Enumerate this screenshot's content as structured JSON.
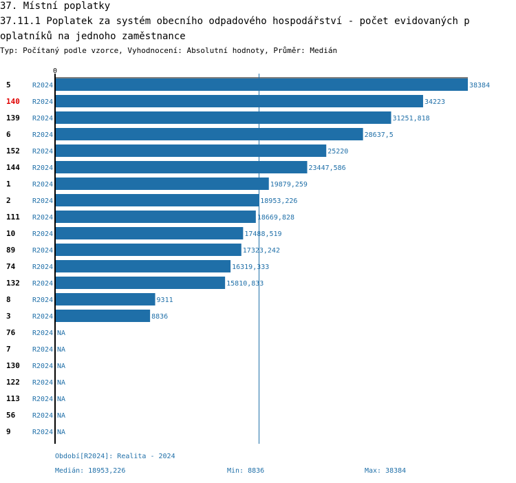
{
  "header": {
    "section_title": "37. Místní poplatky",
    "chart_title_line1": "37.11.1 Poplatek za systém obecního odpadového hospodářství - počet evidovaných p",
    "chart_title_line2": "oplatníků na jednoho zaměstnance",
    "subtitle": "Typ: Počítaný podle vzorce, Vyhodnocení: Absolutní hodnoty, Průměr: Medián"
  },
  "colors": {
    "bar": "#1f6fa8",
    "text_blue": "#1f6fa8",
    "highlight": "#e00000",
    "axis": "#000000",
    "median_line": "#1f6fa8"
  },
  "chart_data": {
    "type": "bar",
    "orientation": "horizontal",
    "x_axis_zero_label": "0",
    "xlim": [
      0,
      38384
    ],
    "median": 18953.226,
    "categories": [
      {
        "id": "5",
        "period": "R2024",
        "value": 38384,
        "label": "38384",
        "highlight": false
      },
      {
        "id": "140",
        "period": "R2024",
        "value": 34223,
        "label": "34223",
        "highlight": true
      },
      {
        "id": "139",
        "period": "R2024",
        "value": 31251.818,
        "label": "31251,818",
        "highlight": false
      },
      {
        "id": "6",
        "period": "R2024",
        "value": 28637.5,
        "label": "28637,5",
        "highlight": false
      },
      {
        "id": "152",
        "period": "R2024",
        "value": 25220,
        "label": "25220",
        "highlight": false
      },
      {
        "id": "144",
        "period": "R2024",
        "value": 23447.586,
        "label": "23447,586",
        "highlight": false
      },
      {
        "id": "1",
        "period": "R2024",
        "value": 19879.259,
        "label": "19879,259",
        "highlight": false
      },
      {
        "id": "2",
        "period": "R2024",
        "value": 18953.226,
        "label": "18953,226",
        "highlight": false
      },
      {
        "id": "111",
        "period": "R2024",
        "value": 18669.828,
        "label": "18669,828",
        "highlight": false
      },
      {
        "id": "10",
        "period": "R2024",
        "value": 17488.519,
        "label": "17488,519",
        "highlight": false
      },
      {
        "id": "89",
        "period": "R2024",
        "value": 17323.242,
        "label": "17323,242",
        "highlight": false
      },
      {
        "id": "74",
        "period": "R2024",
        "value": 16319.333,
        "label": "16319,333",
        "highlight": false
      },
      {
        "id": "132",
        "period": "R2024",
        "value": 15810.833,
        "label": "15810,833",
        "highlight": false
      },
      {
        "id": "8",
        "period": "R2024",
        "value": 9311,
        "label": "9311",
        "highlight": false
      },
      {
        "id": "3",
        "period": "R2024",
        "value": 8836,
        "label": "8836",
        "highlight": false
      },
      {
        "id": "76",
        "period": "R2024",
        "value": null,
        "label": "NA",
        "highlight": false
      },
      {
        "id": "7",
        "period": "R2024",
        "value": null,
        "label": "NA",
        "highlight": false
      },
      {
        "id": "130",
        "period": "R2024",
        "value": null,
        "label": "NA",
        "highlight": false
      },
      {
        "id": "122",
        "period": "R2024",
        "value": null,
        "label": "NA",
        "highlight": false
      },
      {
        "id": "113",
        "period": "R2024",
        "value": null,
        "label": "NA",
        "highlight": false
      },
      {
        "id": "56",
        "period": "R2024",
        "value": null,
        "label": "NA",
        "highlight": false
      },
      {
        "id": "9",
        "period": "R2024",
        "value": null,
        "label": "NA",
        "highlight": false
      }
    ]
  },
  "footer": {
    "period_note": "Období[R2024]: Realita - 2024",
    "median_text": "Medián: 18953,226",
    "min_text": "Min: 8836",
    "max_text": "Max: 38384"
  }
}
